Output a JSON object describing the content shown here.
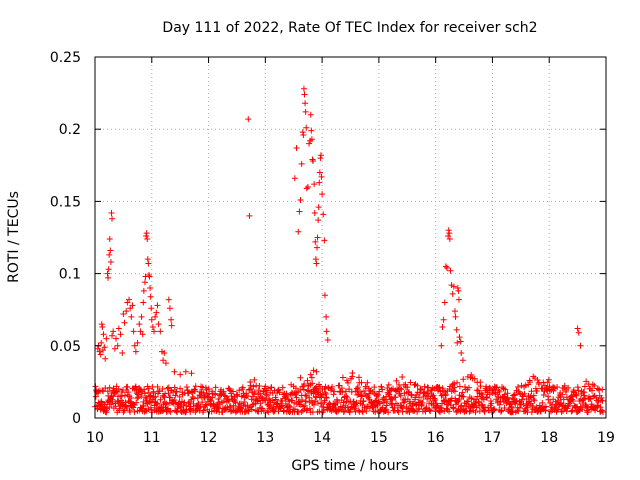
{
  "chart_data": {
    "type": "scatter",
    "title": "Day 111 of 2022, Rate Of TEC Index for receiver sch2",
    "xlabel": "GPS time / hours",
    "ylabel": "ROTI / TECUs",
    "xlim": [
      10,
      19
    ],
    "ylim": [
      0,
      0.25
    ],
    "xticks": [
      10,
      11,
      12,
      13,
      14,
      15,
      16,
      17,
      18,
      19
    ],
    "yticks": [
      0,
      0.05,
      0.1,
      0.15,
      0.2,
      0.25
    ],
    "xtick_labels": [
      "10",
      "11",
      "12",
      "13",
      "14",
      "15",
      "16",
      "17",
      "18",
      "19"
    ],
    "ytick_labels": [
      "0",
      "0.05",
      "0.1",
      "0.15",
      "0.2",
      "0.25"
    ],
    "grid": true,
    "marker": "+",
    "color": "#ff0000",
    "background_band": {
      "x_range": [
        10.0,
        18.95
      ],
      "y_typical": [
        0.004,
        0.022
      ],
      "y_bumps": [
        {
          "x": 12.8,
          "y_max": 0.028
        },
        {
          "x": 13.7,
          "y_max": 0.032
        },
        {
          "x": 14.55,
          "y_max": 0.04
        },
        {
          "x": 15.4,
          "y_max": 0.035
        },
        {
          "x": 16.55,
          "y_max": 0.034
        },
        {
          "x": 17.8,
          "y_max": 0.036
        },
        {
          "x": 18.6,
          "y_max": 0.027
        }
      ]
    },
    "series": [
      {
        "name": "sch2",
        "points": [
          [
            10.05,
            0.048
          ],
          [
            10.06,
            0.05
          ],
          [
            10.08,
            0.046
          ],
          [
            10.1,
            0.044
          ],
          [
            10.11,
            0.052
          ],
          [
            10.12,
            0.065
          ],
          [
            10.13,
            0.063
          ],
          [
            10.14,
            0.047
          ],
          [
            10.15,
            0.058
          ],
          [
            10.17,
            0.049
          ],
          [
            10.18,
            0.041
          ],
          [
            10.2,
            0.055
          ],
          [
            10.22,
            0.1
          ],
          [
            10.23,
            0.097
          ],
          [
            10.24,
            0.103
          ],
          [
            10.25,
            0.113
          ],
          [
            10.26,
            0.124
          ],
          [
            10.27,
            0.116
          ],
          [
            10.28,
            0.108
          ],
          [
            10.29,
            0.142
          ],
          [
            10.3,
            0.138
          ],
          [
            10.3,
            0.057
          ],
          [
            10.32,
            0.06
          ],
          [
            10.35,
            0.048
          ],
          [
            10.37,
            0.055
          ],
          [
            10.4,
            0.05
          ],
          [
            10.42,
            0.062
          ],
          [
            10.45,
            0.058
          ],
          [
            10.48,
            0.045
          ],
          [
            10.5,
            0.072
          ],
          [
            10.52,
            0.066
          ],
          [
            10.55,
            0.074
          ],
          [
            10.57,
            0.08
          ],
          [
            10.6,
            0.082
          ],
          [
            10.62,
            0.076
          ],
          [
            10.64,
            0.07
          ],
          [
            10.66,
            0.078
          ],
          [
            10.68,
            0.06
          ],
          [
            10.7,
            0.05
          ],
          [
            10.72,
            0.046
          ],
          [
            10.75,
            0.052
          ],
          [
            10.78,
            0.065
          ],
          [
            10.8,
            0.06
          ],
          [
            10.82,
            0.07
          ],
          [
            10.84,
            0.058
          ],
          [
            10.85,
            0.08
          ],
          [
            10.86,
            0.088
          ],
          [
            10.88,
            0.094
          ],
          [
            10.89,
            0.098
          ],
          [
            10.9,
            0.126
          ],
          [
            10.91,
            0.128
          ],
          [
            10.92,
            0.124
          ],
          [
            10.93,
            0.11
          ],
          [
            10.94,
            0.107
          ],
          [
            10.95,
            0.099
          ],
          [
            10.96,
            0.098
          ],
          [
            10.97,
            0.09
          ],
          [
            10.98,
            0.084
          ],
          [
            10.99,
            0.076
          ],
          [
            11.0,
            0.068
          ],
          [
            11.02,
            0.063
          ],
          [
            11.04,
            0.06
          ],
          [
            11.06,
            0.07
          ],
          [
            11.08,
            0.073
          ],
          [
            11.1,
            0.078
          ],
          [
            11.12,
            0.065
          ],
          [
            11.15,
            0.06
          ],
          [
            11.18,
            0.046
          ],
          [
            11.2,
            0.04
          ],
          [
            11.22,
            0.045
          ],
          [
            11.25,
            0.038
          ],
          [
            11.3,
            0.082
          ],
          [
            11.32,
            0.076
          ],
          [
            11.34,
            0.068
          ],
          [
            11.35,
            0.064
          ],
          [
            11.4,
            0.032
          ],
          [
            11.5,
            0.03
          ],
          [
            11.6,
            0.032
          ],
          [
            11.7,
            0.031
          ],
          [
            12.7,
            0.207
          ],
          [
            12.72,
            0.14
          ],
          [
            13.52,
            0.166
          ],
          [
            13.55,
            0.187
          ],
          [
            13.58,
            0.129
          ],
          [
            13.6,
            0.143
          ],
          [
            13.62,
            0.151
          ],
          [
            13.64,
            0.176
          ],
          [
            13.66,
            0.198
          ],
          [
            13.67,
            0.196
          ],
          [
            13.68,
            0.228
          ],
          [
            13.69,
            0.224
          ],
          [
            13.7,
            0.218
          ],
          [
            13.71,
            0.212
          ],
          [
            13.72,
            0.201
          ],
          [
            13.73,
            0.159
          ],
          [
            13.75,
            0.16
          ],
          [
            13.77,
            0.19
          ],
          [
            13.79,
            0.192
          ],
          [
            13.8,
            0.21
          ],
          [
            13.81,
            0.199
          ],
          [
            13.82,
            0.193
          ],
          [
            13.83,
            0.179
          ],
          [
            13.84,
            0.178
          ],
          [
            13.86,
            0.162
          ],
          [
            13.87,
            0.142
          ],
          [
            13.88,
            0.122
          ],
          [
            13.89,
            0.11
          ],
          [
            13.9,
            0.107
          ],
          [
            13.91,
            0.118
          ],
          [
            13.92,
            0.125
          ],
          [
            13.93,
            0.137
          ],
          [
            13.94,
            0.146
          ],
          [
            13.95,
            0.163
          ],
          [
            13.96,
            0.17
          ],
          [
            13.97,
            0.18
          ],
          [
            13.98,
            0.182
          ],
          [
            13.99,
            0.167
          ],
          [
            14.0,
            0.155
          ],
          [
            14.02,
            0.141
          ],
          [
            14.04,
            0.123
          ],
          [
            14.05,
            0.085
          ],
          [
            14.07,
            0.07
          ],
          [
            14.08,
            0.06
          ],
          [
            14.1,
            0.054
          ],
          [
            13.8,
            0.03
          ],
          [
            13.82,
            0.028
          ],
          [
            13.85,
            0.033
          ],
          [
            13.9,
            0.032
          ],
          [
            16.1,
            0.05
          ],
          [
            16.12,
            0.063
          ],
          [
            16.14,
            0.068
          ],
          [
            16.16,
            0.08
          ],
          [
            16.18,
            0.105
          ],
          [
            16.2,
            0.104
          ],
          [
            16.22,
            0.126
          ],
          [
            16.23,
            0.13
          ],
          [
            16.24,
            0.128
          ],
          [
            16.25,
            0.124
          ],
          [
            16.26,
            0.102
          ],
          [
            16.28,
            0.092
          ],
          [
            16.3,
            0.086
          ],
          [
            16.32,
            0.091
          ],
          [
            16.34,
            0.074
          ],
          [
            16.35,
            0.07
          ],
          [
            16.37,
            0.061
          ],
          [
            16.38,
            0.052
          ],
          [
            16.39,
            0.09
          ],
          [
            16.4,
            0.088
          ],
          [
            16.41,
            0.082
          ],
          [
            16.42,
            0.056
          ],
          [
            16.44,
            0.053
          ],
          [
            16.45,
            0.045
          ],
          [
            16.48,
            0.04
          ],
          [
            18.5,
            0.062
          ],
          [
            18.52,
            0.059
          ],
          [
            18.55,
            0.05
          ]
        ]
      }
    ]
  }
}
